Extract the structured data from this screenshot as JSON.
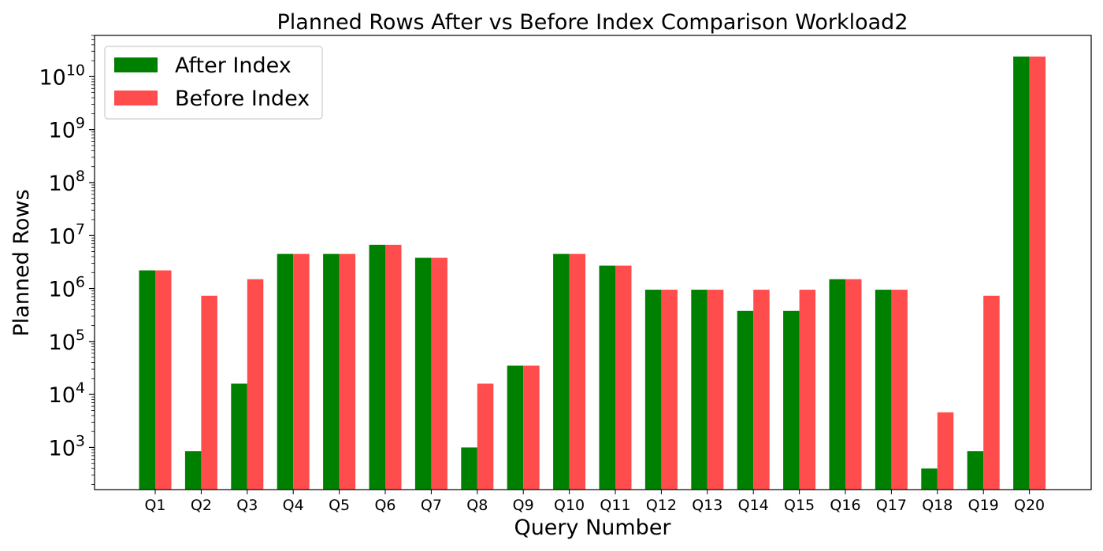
{
  "chart_data": {
    "type": "bar",
    "title": "Planned Rows After vs Before Index Comparison Workload2",
    "xlabel": "Query Number",
    "ylabel": "Planned Rows",
    "yscale": "log",
    "ylim": [
      160,
      60000000000
    ],
    "ytick_values": [
      1000,
      10000,
      100000,
      1000000,
      10000000,
      100000000,
      1000000000,
      10000000000
    ],
    "ytick_labels": [
      {
        "base": "10",
        "exp": "3"
      },
      {
        "base": "10",
        "exp": "4"
      },
      {
        "base": "10",
        "exp": "5"
      },
      {
        "base": "10",
        "exp": "6"
      },
      {
        "base": "10",
        "exp": "7"
      },
      {
        "base": "10",
        "exp": "8"
      },
      {
        "base": "10",
        "exp": "9"
      },
      {
        "base": "10",
        "exp": "10"
      }
    ],
    "grid": false,
    "legend_position": "top-left",
    "categories": [
      "Q1",
      "Q2",
      "Q3",
      "Q4",
      "Q5",
      "Q6",
      "Q7",
      "Q8",
      "Q9",
      "Q10",
      "Q11",
      "Q12",
      "Q13",
      "Q14",
      "Q15",
      "Q16",
      "Q17",
      "Q18",
      "Q19",
      "Q20"
    ],
    "series": [
      {
        "name": "After Index",
        "color": "#008000",
        "values": [
          2200000,
          850,
          16000,
          4500000,
          4500000,
          6700000,
          3800000,
          1000,
          35000,
          4500000,
          2700000,
          950000,
          950000,
          380000,
          380000,
          1500000,
          950000,
          400,
          850,
          24000000000
        ]
      },
      {
        "name": "Before Index",
        "color": "#ff4d4d",
        "values": [
          2200000,
          730000,
          1500000,
          4500000,
          4500000,
          6700000,
          3800000,
          16000,
          35000,
          4500000,
          2700000,
          950000,
          950000,
          950000,
          950000,
          1500000,
          950000,
          4600,
          730000,
          24000000000
        ]
      }
    ]
  }
}
